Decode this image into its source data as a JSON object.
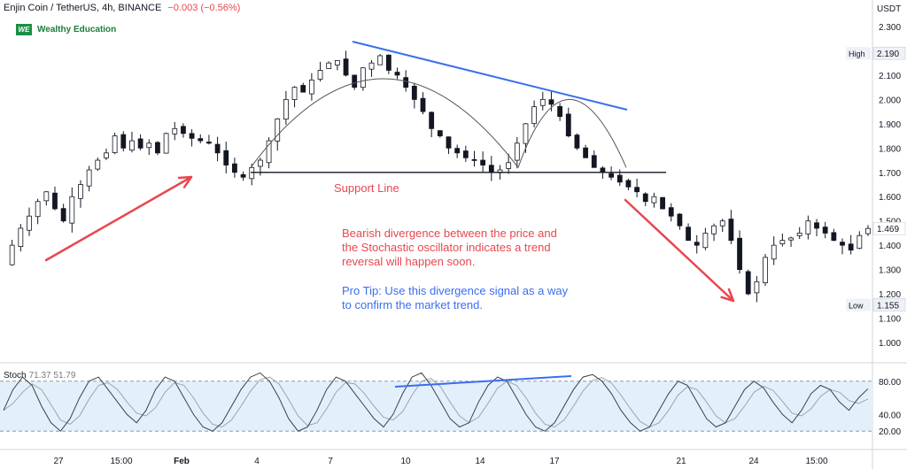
{
  "header": {
    "title": "Enjin Coin / TetherUS, 4h, BINANCE",
    "change": "−0.003 (−0.56%)"
  },
  "brand": {
    "logo_text": "WE",
    "name": "Wealthy Education"
  },
  "price_axis": {
    "unit": "USDT",
    "ticks": [
      "2.300",
      "2.200",
      "2.100",
      "2.000",
      "1.900",
      "1.800",
      "1.700",
      "1.600",
      "1.500",
      "1.400",
      "1.300",
      "1.200",
      "1.100",
      "1.000"
    ],
    "high_label": "High",
    "high_value": "2.190",
    "low_label": "Low",
    "low_value": "1.155",
    "last_value": "1.469"
  },
  "stoch_axis": {
    "ticks": [
      "80.00",
      "40.00",
      "20.00"
    ]
  },
  "time_axis": {
    "ticks": [
      "27",
      "15:00",
      "Feb",
      "4",
      "7",
      "10",
      "14",
      "17",
      "21",
      "24",
      "15:00"
    ]
  },
  "annotations": {
    "support": "Support Line",
    "divergence": [
      "Bearish divergence between the price and",
      "the Stochastic oscillator indicates a trend",
      "reversal will happen soon."
    ],
    "pro_tip": [
      "Pro Tip: Use this divergence signal as a way",
      "to confirm the market trend."
    ]
  },
  "stoch_label": {
    "name": "Stoch",
    "values": "71.37  51.79"
  },
  "colors": {
    "up": "#26a69a",
    "down": "#131722",
    "accent_red": "#e8474f",
    "accent_blue": "#3b6ef0",
    "band": "#e3f0fc"
  },
  "chart_data": {
    "type": "candlestick",
    "symbol": "Enjin Coin / TetherUS",
    "timeframe": "4h",
    "exchange": "BINANCE",
    "ylim": [
      1.0,
      2.3
    ],
    "close_path": [
      1.32,
      1.4,
      1.47,
      1.52,
      1.58,
      1.62,
      1.55,
      1.5,
      1.6,
      1.65,
      1.71,
      1.75,
      1.78,
      1.85,
      1.8,
      1.83,
      1.8,
      1.82,
      1.78,
      1.86,
      1.88,
      1.86,
      1.84,
      1.83,
      1.82,
      1.78,
      1.73,
      1.7,
      1.68,
      1.72,
      1.75,
      1.83,
      1.92,
      2.0,
      2.05,
      2.03,
      2.08,
      2.12,
      2.15,
      2.16,
      2.1,
      2.05,
      2.13,
      2.15,
      2.18,
      2.12,
      2.1,
      2.05,
      2.0,
      1.95,
      1.88,
      1.85,
      1.8,
      1.78,
      1.76,
      1.75,
      1.73,
      1.7,
      1.71,
      1.74,
      1.82,
      1.9,
      1.97,
      2.0,
      1.98,
      1.93,
      1.85,
      1.8,
      1.76,
      1.72,
      1.7,
      1.68,
      1.66,
      1.64,
      1.62,
      1.58,
      1.6,
      1.55,
      1.52,
      1.48,
      1.42,
      1.4,
      1.45,
      1.48,
      1.5,
      1.42,
      1.3,
      1.2,
      1.25,
      1.35,
      1.4,
      1.42,
      1.43,
      1.45,
      1.5,
      1.47,
      1.45,
      1.42,
      1.4,
      1.38,
      1.44,
      1.469
    ],
    "high": 2.19,
    "low": 1.155,
    "last": 1.469,
    "indicator": {
      "name": "Stoch",
      "k_last": 71.37,
      "d_last": 51.79,
      "upper_band": 80,
      "lower_band": 20,
      "k_path": [
        45,
        70,
        85,
        75,
        50,
        30,
        20,
        35,
        60,
        80,
        85,
        70,
        55,
        40,
        30,
        45,
        70,
        85,
        80,
        60,
        40,
        25,
        20,
        30,
        50,
        70,
        85,
        90,
        80,
        60,
        35,
        20,
        25,
        45,
        70,
        85,
        80,
        65,
        50,
        35,
        25,
        40,
        65,
        85,
        90,
        75,
        55,
        35,
        25,
        30,
        55,
        75,
        85,
        80,
        60,
        40,
        25,
        20,
        30,
        50,
        70,
        85,
        88,
        80,
        65,
        45,
        30,
        20,
        25,
        45,
        65,
        80,
        75,
        55,
        35,
        25,
        30,
        50,
        70,
        80,
        72,
        55,
        40,
        30,
        45,
        65,
        75,
        70,
        55,
        45,
        60,
        71
      ]
    }
  }
}
